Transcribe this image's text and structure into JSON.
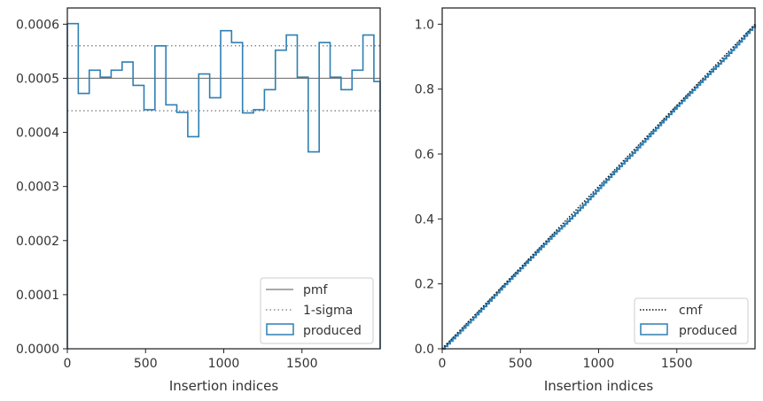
{
  "colors": {
    "produced": "#2f7fb3",
    "pmf": "#777777",
    "sigma": "#777777",
    "cmf": "#111111",
    "axes": "#222222",
    "text": "#333333"
  },
  "chart_data": [
    {
      "type": "histogram-step",
      "xlabel": "Insertion indices",
      "ylabel": "",
      "xlim": [
        0,
        2000
      ],
      "ylim": [
        0,
        0.00063
      ],
      "xticks": [
        0,
        500,
        1000,
        1500
      ],
      "xtick_labels": [
        "0",
        "500",
        "1000",
        "1500"
      ],
      "yticks": [
        0,
        0.0001,
        0.0002,
        0.0003,
        0.0004,
        0.0005,
        0.0006
      ],
      "ytick_labels": [
        "0.0000",
        "0.0001",
        "0.0002",
        "0.0003",
        "0.0004",
        "0.0005",
        "0.0006"
      ],
      "grid": false,
      "legend_location": "lower right",
      "bin_edges": [
        0,
        70,
        140,
        210,
        280,
        350,
        420,
        490,
        560,
        630,
        700,
        770,
        840,
        910,
        980,
        1050,
        1120,
        1190,
        1260,
        1330,
        1400,
        1470,
        1540,
        1610,
        1680,
        1750,
        1820,
        1890,
        1960,
        2000
      ],
      "series": [
        {
          "name": "produced",
          "style": "step",
          "values": [
            0.000601,
            0.000472,
            0.000515,
            0.000502,
            0.000515,
            0.00053,
            0.000487,
            0.000442,
            0.00056,
            0.000451,
            0.000437,
            0.000392,
            0.000508,
            0.000464,
            0.000588,
            0.000566,
            0.000436,
            0.000442,
            0.000479,
            0.000552,
            0.00058,
            0.000502,
            0.000364,
            0.000566,
            0.000502,
            0.000479,
            0.000515,
            0.00058,
            0.000494
          ]
        },
        {
          "name": "pmf",
          "style": "solid",
          "y": 0.0005
        },
        {
          "name": "1-sigma",
          "style": "dotted",
          "y": [
            0.00056,
            0.00044
          ]
        }
      ]
    },
    {
      "type": "line",
      "xlabel": "Insertion indices",
      "ylabel": "",
      "xlim": [
        0,
        2000
      ],
      "ylim": [
        0,
        1.05
      ],
      "xticks": [
        0,
        500,
        1000,
        1500
      ],
      "xtick_labels": [
        "0",
        "500",
        "1000",
        "1500"
      ],
      "yticks": [
        0,
        0.2,
        0.4,
        0.6,
        0.8,
        1.0
      ],
      "ytick_labels": [
        "0.0",
        "0.2",
        "0.4",
        "0.6",
        "0.8",
        "1.0"
      ],
      "grid": false,
      "legend_location": "lower right",
      "series": [
        {
          "name": "cmf",
          "style": "dotted",
          "x": [
            0,
            2000
          ],
          "y": [
            0,
            1.0
          ]
        },
        {
          "name": "produced",
          "style": "step",
          "x": [
            0,
            100,
            200,
            300,
            400,
            500,
            600,
            700,
            800,
            900,
            1000,
            1100,
            1200,
            1300,
            1400,
            1500,
            1600,
            1700,
            1800,
            1900,
            2000
          ],
          "y": [
            0,
            0.048,
            0.097,
            0.148,
            0.199,
            0.248,
            0.298,
            0.347,
            0.393,
            0.443,
            0.495,
            0.546,
            0.595,
            0.646,
            0.697,
            0.748,
            0.797,
            0.846,
            0.894,
            0.946,
            1.0
          ]
        }
      ]
    }
  ]
}
